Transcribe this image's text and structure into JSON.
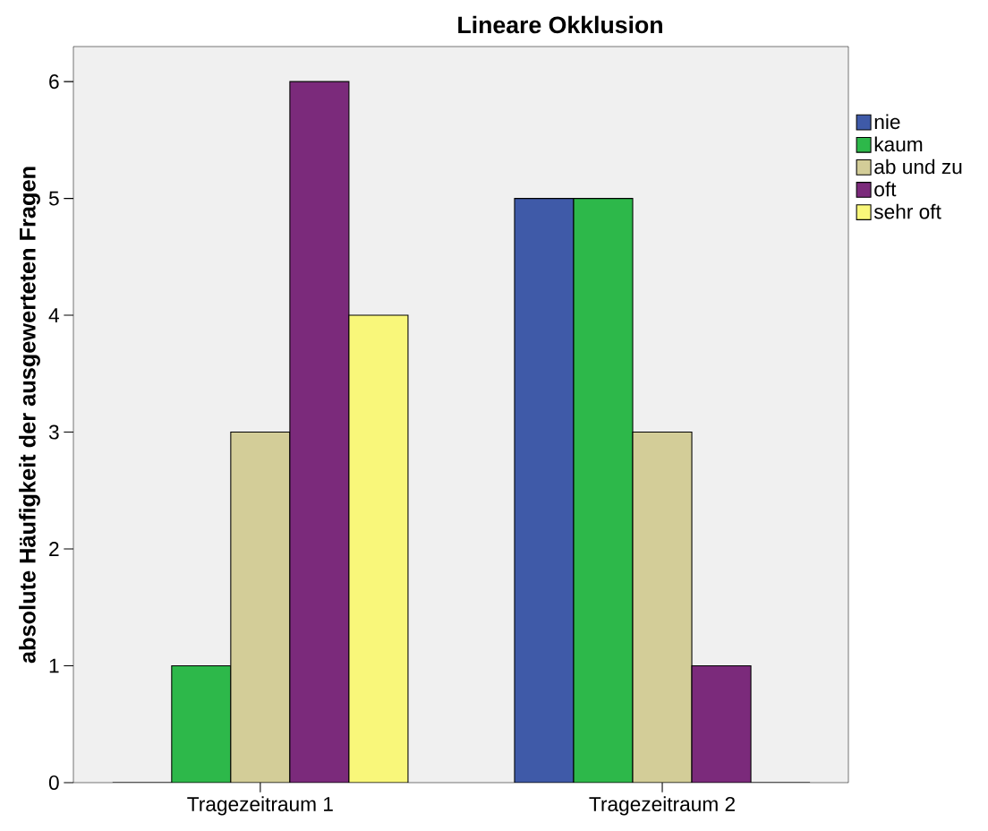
{
  "chart_data": {
    "type": "bar",
    "title": "Lineare Okklusion",
    "ylabel": "absolute Häufigkeit der ausgewerteten Fragen",
    "categories": [
      "Tragezeitraum 1",
      "Tragezeitraum 2"
    ],
    "series": [
      {
        "name": "nie",
        "color": "#3f5aa8",
        "values": [
          0,
          5
        ]
      },
      {
        "name": "kaum",
        "color": "#2db84a",
        "values": [
          1,
          5
        ]
      },
      {
        "name": "ab und zu",
        "color": "#d3cd98",
        "values": [
          3,
          3
        ]
      },
      {
        "name": "oft",
        "color": "#7b2a7b",
        "values": [
          6,
          1
        ]
      },
      {
        "name": "sehr oft",
        "color": "#f9f77a",
        "values": [
          4,
          0
        ]
      }
    ],
    "ylim": [
      0,
      6.3
    ],
    "yticks": [
      0,
      1,
      2,
      3,
      4,
      5,
      6
    ],
    "legend": "top right"
  }
}
